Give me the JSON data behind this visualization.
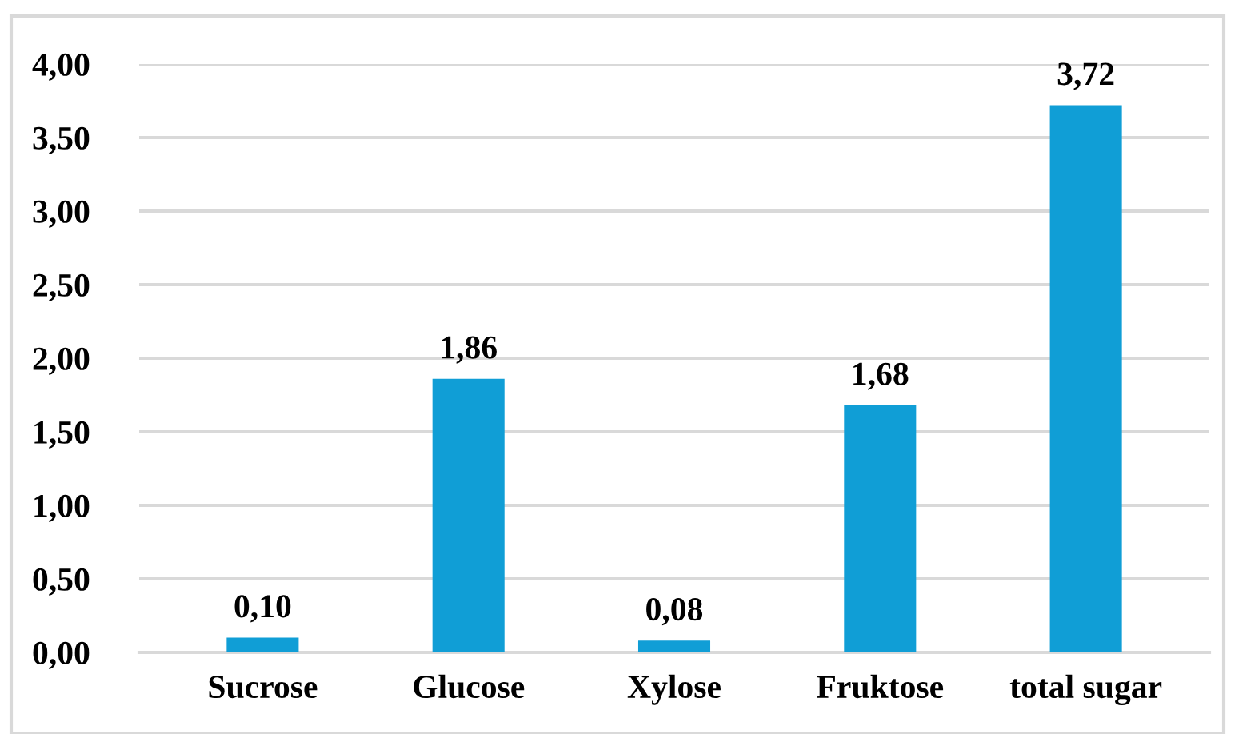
{
  "chart_data": {
    "type": "bar",
    "categories": [
      "Sucrose",
      "Glucose",
      "Xylose",
      "Fruktose",
      "total sugar"
    ],
    "values": [
      0.1,
      1.86,
      0.08,
      1.68,
      3.72
    ],
    "value_labels": [
      "0,10",
      "1,86",
      "0,08",
      "1,68",
      "3,72"
    ],
    "color": "#109ed6",
    "ylim": [
      0,
      4
    ],
    "yticks": [
      {
        "value": 0,
        "label": "0,00"
      },
      {
        "value": 0.5,
        "label": "0,50"
      },
      {
        "value": 1,
        "label": "1,00"
      },
      {
        "value": 1.5,
        "label": "1,50"
      },
      {
        "value": 2,
        "label": "2,00"
      },
      {
        "value": 2.5,
        "label": "2,50"
      },
      {
        "value": 3,
        "label": "3,00"
      },
      {
        "value": 3.5,
        "label": "3,50"
      },
      {
        "value": 4,
        "label": "4,00"
      }
    ],
    "grid": "y",
    "legend": false
  }
}
